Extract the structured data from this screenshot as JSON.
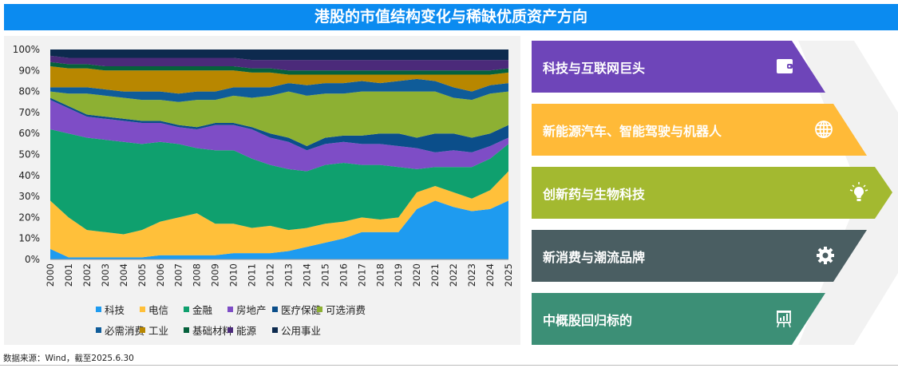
{
  "title": "港股的市值结构变化与稀缺优质资产方向",
  "source": "数据来源：Wind，截至2025.6.30",
  "directions": [
    {
      "label": "科技与互联网巨头",
      "icon": "wallet-icon",
      "color": "#6E45B9"
    },
    {
      "label": "新能源汽车、智能驾驶与机器人",
      "icon": "globe-icon",
      "color": "#FFBA38"
    },
    {
      "label": "创新药与生物科技",
      "icon": "lightbulb-icon",
      "color": "#A3B930"
    },
    {
      "label": "新消费与潮流品牌",
      "icon": "gear-icon",
      "color": "#4A5E62"
    },
    {
      "label": "中概股回归标的",
      "icon": "presentation-chart-icon",
      "color": "#3C8F76"
    }
  ],
  "chart_data": {
    "type": "area",
    "stacked": true,
    "value_kind": "cumulative share (%) at top of each band",
    "x": [
      "2000",
      "2001",
      "2002",
      "2003",
      "2004",
      "2005",
      "2006",
      "2007",
      "2008",
      "2009",
      "2010",
      "2011",
      "2012",
      "2013",
      "2014",
      "2015",
      "2016",
      "2017",
      "2018",
      "2019",
      "2020",
      "2021",
      "2022",
      "2023",
      "2024",
      "2025"
    ],
    "yticks": [
      "0%",
      "10%",
      "20%",
      "30%",
      "40%",
      "50%",
      "60%",
      "70%",
      "80%",
      "90%",
      "100%"
    ],
    "ylim": [
      0,
      100
    ],
    "legend_position": "bottom",
    "series": [
      {
        "name": "科技",
        "color": "#1E9BF0",
        "cumulative": [
          5,
          1,
          1,
          1,
          1,
          1,
          2,
          2,
          2,
          2,
          3,
          3,
          3,
          4,
          6,
          8,
          10,
          13,
          13,
          13,
          24,
          28,
          25,
          23,
          24,
          28
        ]
      },
      {
        "name": "电信",
        "color": "#FFC03A",
        "cumulative": [
          28,
          20,
          14,
          13,
          12,
          14,
          18,
          20,
          22,
          17,
          17,
          15,
          16,
          14,
          15,
          17,
          18,
          20,
          19,
          20,
          32,
          35,
          32,
          29,
          33,
          42
        ]
      },
      {
        "name": "金融",
        "color": "#0FA06E",
        "cumulative": [
          62,
          60,
          58,
          57,
          56,
          55,
          56,
          55,
          53,
          52,
          52,
          48,
          45,
          43,
          42,
          45,
          46,
          45,
          45,
          44,
          43,
          44,
          44,
          44,
          48,
          55
        ]
      },
      {
        "name": "房地产",
        "color": "#7E4DC6",
        "cumulative": [
          76,
          72,
          68,
          67,
          66,
          65,
          65,
          63,
          62,
          64,
          64,
          62,
          58,
          56,
          52,
          55,
          56,
          55,
          55,
          54,
          53,
          51,
          52,
          51,
          54,
          58
        ]
      },
      {
        "name": "医疗保健",
        "color": "#0B4E8A",
        "cumulative": [
          77,
          73,
          69,
          68,
          67,
          66,
          66,
          64,
          63,
          65,
          65,
          63,
          60,
          58,
          54,
          58,
          59,
          59,
          60,
          60,
          58,
          60,
          60,
          58,
          60,
          64
        ]
      },
      {
        "name": "可选消费",
        "color": "#8DB033",
        "cumulative": [
          80,
          79,
          79,
          78,
          77,
          76,
          76,
          75,
          76,
          76,
          78,
          77,
          78,
          80,
          78,
          79,
          79,
          80,
          80,
          80,
          80,
          80,
          77,
          76,
          79,
          80
        ]
      },
      {
        "name": "必需消费",
        "color": "#0F5C99",
        "cumulative": [
          82,
          82,
          82,
          81,
          80,
          80,
          80,
          79,
          80,
          80,
          82,
          82,
          82,
          84,
          83,
          84,
          84,
          85,
          84,
          85,
          86,
          85,
          82,
          80,
          83,
          84
        ]
      },
      {
        "name": "工业",
        "color": "#B88700",
        "cumulative": [
          92,
          91,
          91,
          90,
          90,
          90,
          90,
          90,
          90,
          90,
          90,
          89,
          89,
          88,
          88,
          88,
          88,
          88,
          88,
          88,
          88,
          88,
          88,
          88,
          88,
          89
        ]
      },
      {
        "name": "基础材料",
        "color": "#06613C",
        "cumulative": [
          94,
          93,
          93,
          92,
          92,
          92,
          92,
          92,
          92,
          92,
          92,
          91,
          91,
          90,
          90,
          90,
          90,
          90,
          90,
          90,
          90,
          90,
          90,
          90,
          90,
          91
        ]
      },
      {
        "name": "能源",
        "color": "#4B2A7A",
        "cumulative": [
          97,
          96,
          96,
          96,
          96,
          96,
          96,
          96,
          96,
          96,
          96,
          95,
          95,
          95,
          95,
          95,
          95,
          95,
          95,
          95,
          95,
          95,
          95,
          95,
          95,
          95
        ]
      },
      {
        "name": "公用事业",
        "color": "#0D2A4E",
        "cumulative": [
          100,
          100,
          100,
          100,
          100,
          100,
          100,
          100,
          100,
          100,
          100,
          100,
          100,
          100,
          100,
          100,
          100,
          100,
          100,
          100,
          100,
          100,
          100,
          100,
          100,
          100
        ]
      }
    ]
  }
}
